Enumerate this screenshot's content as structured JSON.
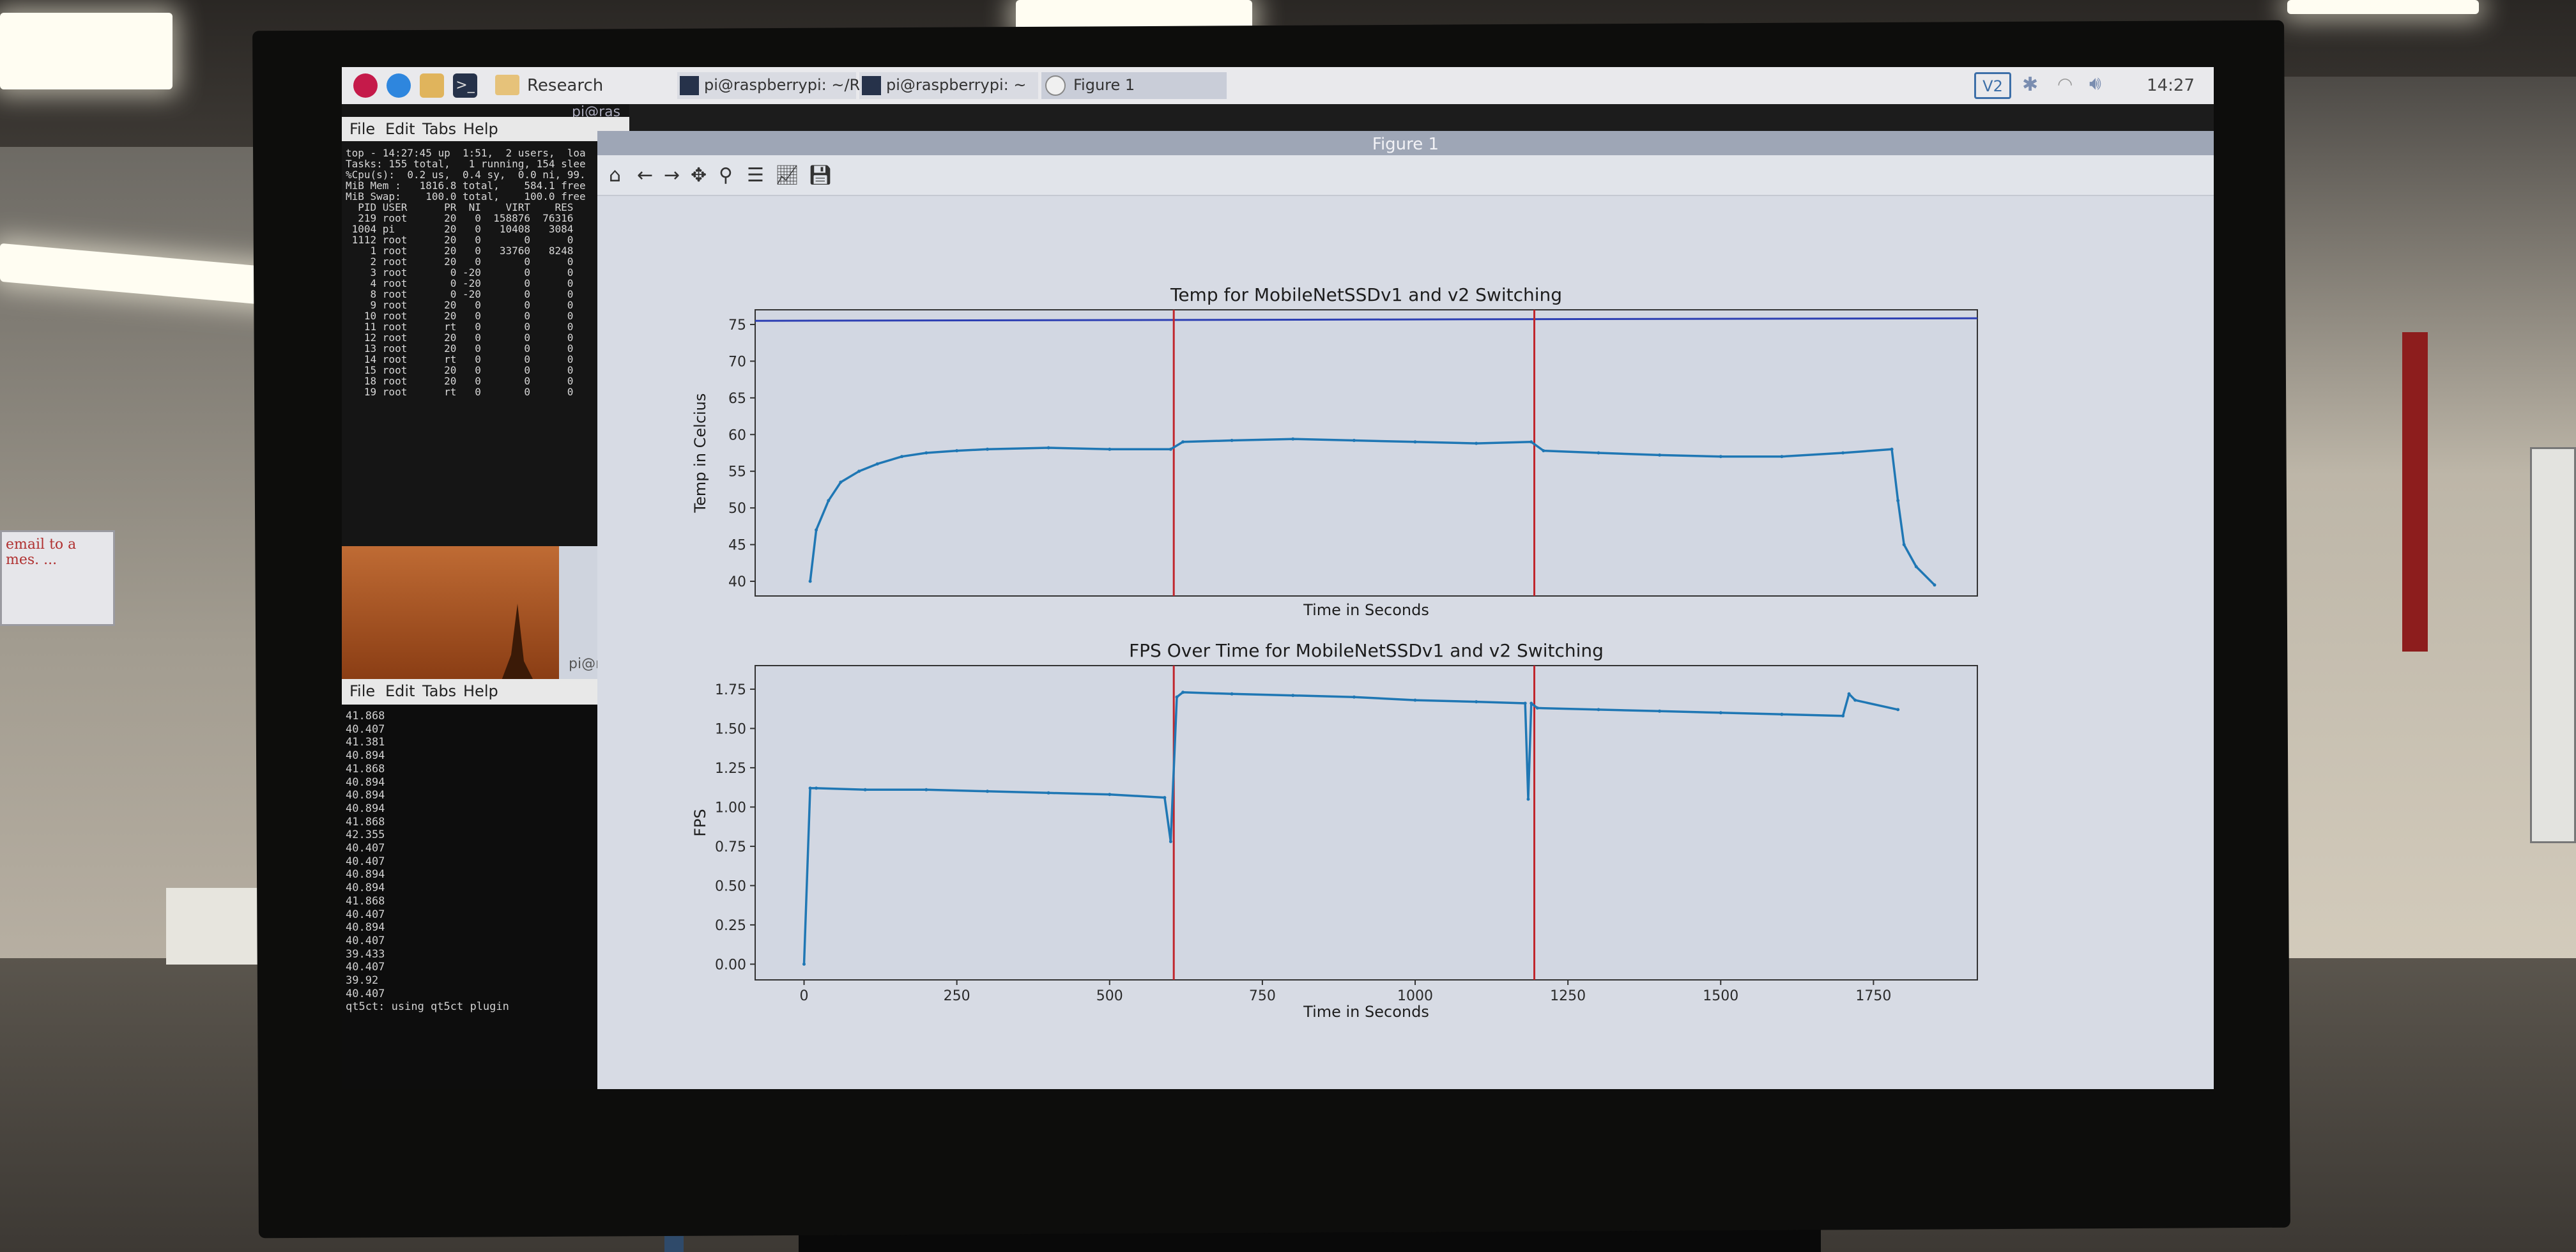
{
  "taskbar": {
    "folder_label": "Research",
    "task1_label": "pi@raspberrypi: ~/Re...",
    "task2_label": "pi@raspberrypi: ~",
    "task3_label": "Figure 1",
    "clock": "14:27",
    "vc_label": "V2"
  },
  "terminal_top": {
    "host_label": "pi@ras",
    "menu": [
      "File",
      "Edit",
      "Tabs",
      "Help"
    ],
    "lines": [
      "top - 14:27:45 up  1:51,  2 users,  loa",
      "Tasks: 155 total,   1 running, 154 slee",
      "%Cpu(s):  0.2 us,  0.4 sy,  0.0 ni, 99.",
      "MiB Mem :   1816.8 total,    584.1 free",
      "MiB Swap:    100.0 total,    100.0 free",
      "",
      "  PID USER      PR  NI    VIRT    RES",
      "  219 root      20   0  158876  76316",
      " 1004 pi        20   0   10408   3084",
      " 1112 root      20   0       0      0",
      "    1 root      20   0   33760   8248",
      "    2 root      20   0       0      0",
      "    3 root       0 -20       0      0",
      "    4 root       0 -20       0      0",
      "    8 root       0 -20       0      0",
      "    9 root      20   0       0      0",
      "   10 root      20   0       0      0",
      "   11 root      rt   0       0      0",
      "   12 root      20   0       0      0",
      "   13 root      20   0       0      0",
      "   14 root      rt   0       0      0",
      "   15 root      20   0       0      0",
      "   18 root      20   0       0      0",
      "   19 root      rt   0       0      0"
    ]
  },
  "terminal_bottom": {
    "host_label": "pi@raspberr",
    "menu": [
      "File",
      "Edit",
      "Tabs",
      "Help"
    ],
    "lines": [
      "41.868",
      "40.407",
      "41.381",
      "40.894",
      "41.868",
      "40.894",
      "40.894",
      "40.894",
      "41.868",
      "42.355",
      "40.407",
      "40.407",
      "40.894",
      "40.894",
      "41.868",
      "40.407",
      "40.894",
      "40.407",
      "39.433",
      "40.407",
      "39.92",
      "40.407",
      "qt5ct: using qt5ct plugin"
    ]
  },
  "figure_window": {
    "title": "Figure 1",
    "toolbar": [
      "home-icon",
      "back-icon",
      "forward-icon",
      "pan-icon",
      "zoom-icon",
      "configure-subplots-icon",
      "edit-axis-icon",
      "save-icon"
    ]
  },
  "whiteboard_left": "email to a mes. ... ",
  "chart_data": [
    {
      "type": "line",
      "title": "Temp for MobileNetSSDv1 and v2 Switching",
      "xlabel": "Time in Seconds",
      "ylabel": "Temp in Celcius",
      "xlim": [
        -80,
        1920
      ],
      "ylim": [
        38,
        77
      ],
      "yticks": [
        40,
        45,
        50,
        55,
        60,
        65,
        70,
        75
      ],
      "vlines": [
        605,
        1195
      ],
      "hline": 75.5,
      "series": [
        {
          "color": "#1f77b4",
          "x": [
            10,
            20,
            40,
            60,
            90,
            120,
            160,
            200,
            250,
            300,
            400,
            500,
            600,
            620,
            700,
            800,
            900,
            1000,
            1100,
            1190,
            1210,
            1300,
            1400,
            1500,
            1600,
            1700,
            1780,
            1790,
            1800,
            1820,
            1850
          ],
          "y": [
            40.0,
            47.0,
            51.0,
            53.5,
            55.0,
            56.0,
            57.0,
            57.5,
            57.8,
            58.0,
            58.2,
            58.0,
            58.0,
            59.0,
            59.2,
            59.4,
            59.2,
            59.0,
            58.8,
            59.0,
            57.8,
            57.5,
            57.2,
            57.0,
            57.0,
            57.5,
            58.0,
            51.0,
            45.0,
            42.0,
            39.5
          ]
        }
      ]
    },
    {
      "type": "line",
      "title": "FPS Over Time for MobileNetSSDv1 and v2 Switching",
      "xlabel": "Time in Seconds",
      "ylabel": "FPS",
      "xlim": [
        -80,
        1920
      ],
      "ylim": [
        -0.1,
        1.9
      ],
      "xticks": [
        0,
        250,
        500,
        750,
        1000,
        1250,
        1500,
        1750
      ],
      "yticks": [
        0.0,
        0.25,
        0.5,
        0.75,
        1.0,
        1.25,
        1.5,
        1.75
      ],
      "vlines": [
        605,
        1195
      ],
      "series": [
        {
          "color": "#1f77b4",
          "x": [
            0,
            10,
            20,
            100,
            200,
            300,
            400,
            500,
            590,
            600,
            610,
            620,
            700,
            800,
            900,
            1000,
            1100,
            1180,
            1185,
            1190,
            1200,
            1300,
            1400,
            1500,
            1600,
            1700,
            1710,
            1720,
            1790
          ],
          "y": [
            0.0,
            1.12,
            1.12,
            1.11,
            1.11,
            1.1,
            1.09,
            1.08,
            1.06,
            0.78,
            1.7,
            1.73,
            1.72,
            1.71,
            1.7,
            1.68,
            1.67,
            1.66,
            1.05,
            1.66,
            1.63,
            1.62,
            1.61,
            1.6,
            1.59,
            1.58,
            1.72,
            1.68,
            1.62
          ]
        }
      ]
    }
  ]
}
